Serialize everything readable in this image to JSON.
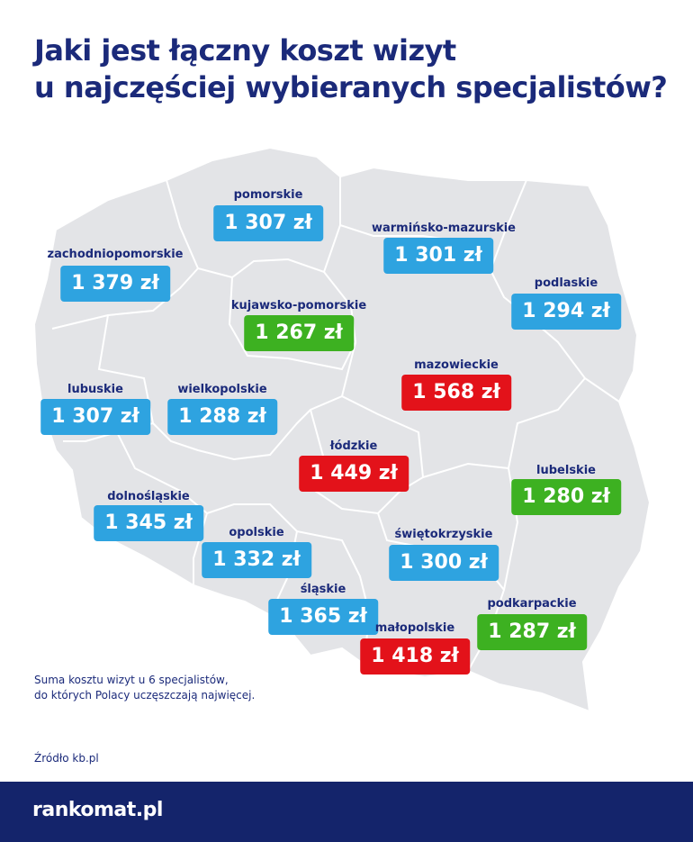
{
  "title": {
    "line1": "Jaki jest łączny koszt wizyt",
    "line2": "u najczęściej wybieranych specjalistów?"
  },
  "colors": {
    "blue": "#2ea3e0",
    "green": "#3db121",
    "red": "#e3121a",
    "map_fill": "#e3e4e7",
    "border": "#ffffff",
    "title": "#1b2a7a",
    "footer": "#14246b"
  },
  "regions": [
    {
      "name": "pomorskie",
      "value": "1 307 zł",
      "color": "blue"
    },
    {
      "name": "warmińsko-mazurskie",
      "value": "1 301 zł",
      "color": "blue"
    },
    {
      "name": "zachodniopomorskie",
      "value": "1 379 zł",
      "color": "blue"
    },
    {
      "name": "podlaskie",
      "value": "1 294 zł",
      "color": "blue"
    },
    {
      "name": "kujawsko-pomorskie",
      "value": "1 267 zł",
      "color": "green"
    },
    {
      "name": "mazowieckie",
      "value": "1 568 zł",
      "color": "red"
    },
    {
      "name": "lubuskie",
      "value": "1 307 zł",
      "color": "blue"
    },
    {
      "name": "wielkopolskie",
      "value": "1 288 zł",
      "color": "blue"
    },
    {
      "name": "łódzkie",
      "value": "1 449 zł",
      "color": "red"
    },
    {
      "name": "lubelskie",
      "value": "1 280 zł",
      "color": "green"
    },
    {
      "name": "dolnośląskie",
      "value": "1 345 zł",
      "color": "blue"
    },
    {
      "name": "opolskie",
      "value": "1 332 zł",
      "color": "blue"
    },
    {
      "name": "świętokrzyskie",
      "value": "1 300 zł",
      "color": "blue"
    },
    {
      "name": "śląskie",
      "value": "1 365 zł",
      "color": "blue"
    },
    {
      "name": "podkarpackie",
      "value": "1 287 zł",
      "color": "green"
    },
    {
      "name": "małopolskie",
      "value": "1 418 zł",
      "color": "red"
    }
  ],
  "note": {
    "line1": "Suma kosztu wizyt u 6 specjalistów,",
    "line2": "do których Polacy uczęszczają najwięcej."
  },
  "source": "Źródło kb.pl",
  "footer": {
    "logo": "rankomat.pl"
  }
}
